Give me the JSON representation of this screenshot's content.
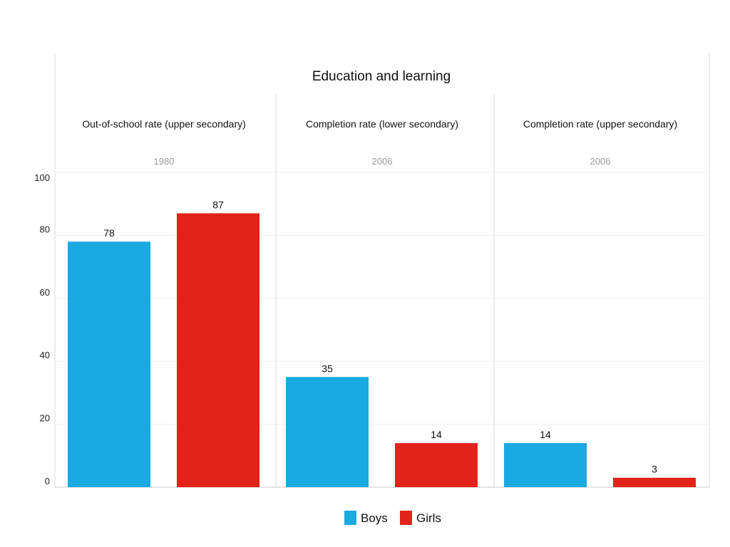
{
  "chart_data": {
    "type": "bar",
    "title": "Education and learning",
    "ylim": [
      0,
      100
    ],
    "yticks": [
      0,
      20,
      40,
      60,
      80,
      100
    ],
    "grid": true,
    "legend_position": "bottom",
    "colors": {
      "Boys": "#1aa9e0",
      "Girls": "#e2231a"
    },
    "series_names": [
      "Boys",
      "Girls"
    ],
    "panels": [
      {
        "title": "Out-of-school rate (upper secondary)",
        "year": "1980",
        "values": [
          78,
          87
        ]
      },
      {
        "title": "Completion rate (lower secondary)",
        "year": "2006",
        "values": [
          35,
          14
        ]
      },
      {
        "title": "Completion rate (upper secondary)",
        "year": "2006",
        "values": [
          14,
          3
        ]
      }
    ]
  }
}
